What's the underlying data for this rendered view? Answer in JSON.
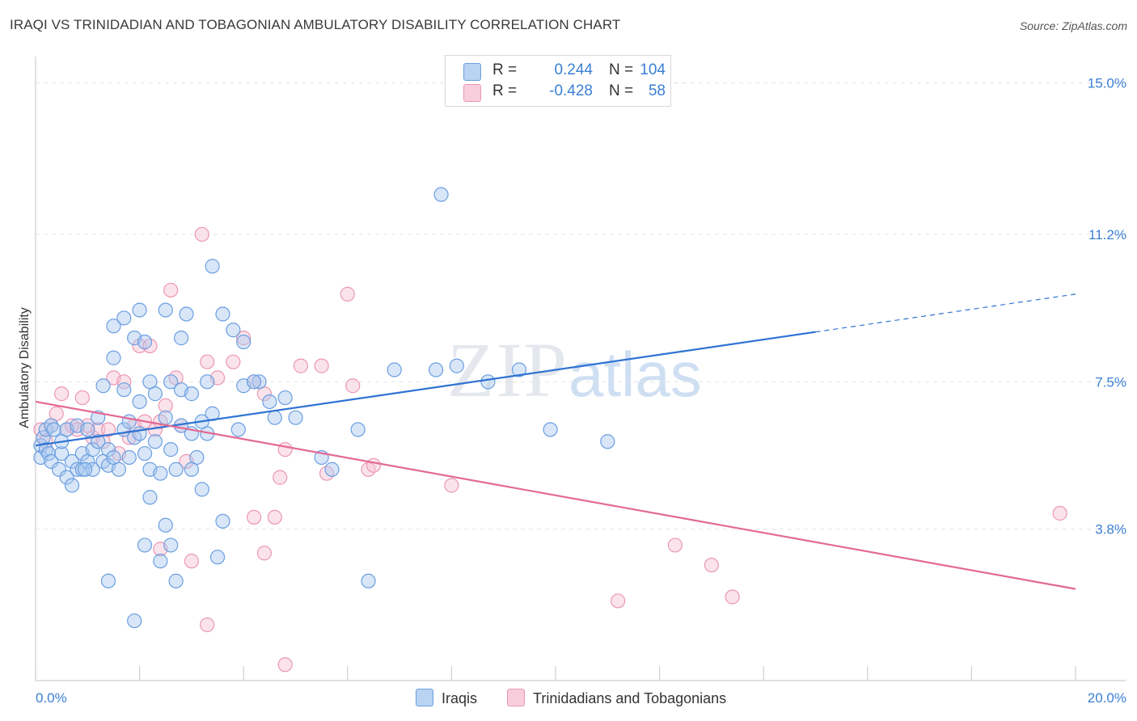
{
  "title": "IRAQI VS TRINIDADIAN AND TOBAGONIAN AMBULATORY DISABILITY CORRELATION CHART",
  "source": "Source: ZipAtlas.com",
  "watermark": {
    "zip": "ZIP",
    "atlas": "atlas"
  },
  "legend": {
    "rows": [
      {
        "r_label": "R =",
        "r_value": "0.244",
        "n_label": "N =",
        "n_value": "104"
      },
      {
        "r_label": "R =",
        "r_value": "-0.428",
        "n_label": "N =",
        "n_value": "58"
      }
    ]
  },
  "bottom_legend": {
    "iraqis": "Iraqis",
    "trinidadians": "Trinidadians and Tobagonians"
  },
  "colors": {
    "iraqis_fill": "#a9c8ef",
    "iraqis_stroke": "#6b9fe0",
    "iraqis_line": "#2f73d3",
    "trin_fill": "#f6c2d3",
    "trin_stroke": "#eb97b3",
    "trin_line": "#e36993",
    "grid": "#e2e2e2",
    "tick_label": "#3a7fd5"
  },
  "chart_data": {
    "type": "scatter",
    "title": "IRAQI VS TRINIDADIAN AND TOBAGONIAN AMBULATORY DISABILITY CORRELATION CHART",
    "xlabel": "",
    "ylabel": "Ambulatory Disability",
    "xlim": [
      0,
      20
    ],
    "ylim": [
      0,
      15.5
    ],
    "x_tick_labels": [
      "0.0%",
      "20.0%"
    ],
    "y_ticks": [
      3.8,
      7.5,
      11.2,
      15.0
    ],
    "y_tick_labels": [
      "3.8%",
      "7.5%",
      "11.2%",
      "15.0%"
    ],
    "grid": "horizontal dashed",
    "series": [
      {
        "name": "Iraqis",
        "R": 0.244,
        "N": 104,
        "trend": {
          "x": [
            0,
            15
          ],
          "y": [
            5.9,
            8.75
          ],
          "dashed_to": [
            20,
            9.7
          ]
        },
        "points": [
          [
            0.1,
            5.9
          ],
          [
            0.1,
            5.6
          ],
          [
            0.15,
            6.1
          ],
          [
            0.2,
            6.3
          ],
          [
            0.2,
            5.8
          ],
          [
            0.25,
            5.7
          ],
          [
            0.3,
            6.4
          ],
          [
            0.3,
            5.5
          ],
          [
            0.35,
            6.3
          ],
          [
            0.45,
            5.3
          ],
          [
            0.5,
            5.7
          ],
          [
            0.5,
            6.0
          ],
          [
            0.6,
            5.1
          ],
          [
            0.6,
            6.3
          ],
          [
            0.7,
            4.9
          ],
          [
            0.7,
            5.5
          ],
          [
            0.8,
            5.3
          ],
          [
            0.8,
            6.4
          ],
          [
            0.9,
            5.3
          ],
          [
            0.9,
            5.7
          ],
          [
            1.0,
            5.5
          ],
          [
            1.0,
            6.3
          ],
          [
            1.1,
            5.3
          ],
          [
            1.1,
            5.8
          ],
          [
            1.2,
            6.6
          ],
          [
            1.2,
            6.0
          ],
          [
            1.3,
            5.5
          ],
          [
            1.4,
            5.4
          ],
          [
            1.4,
            5.8
          ],
          [
            1.5,
            5.6
          ],
          [
            1.6,
            5.3
          ],
          [
            1.7,
            6.3
          ],
          [
            1.8,
            5.6
          ],
          [
            1.8,
            6.5
          ],
          [
            1.9,
            6.1
          ],
          [
            2.0,
            6.2
          ],
          [
            2.1,
            5.7
          ],
          [
            2.2,
            5.3
          ],
          [
            2.3,
            6.0
          ],
          [
            2.4,
            5.2
          ],
          [
            2.5,
            6.6
          ],
          [
            2.6,
            5.8
          ],
          [
            2.7,
            5.3
          ],
          [
            2.8,
            6.4
          ],
          [
            3.0,
            6.2
          ],
          [
            3.1,
            5.6
          ],
          [
            3.2,
            6.5
          ],
          [
            3.3,
            6.2
          ],
          [
            3.4,
            6.7
          ],
          [
            1.3,
            7.4
          ],
          [
            1.5,
            8.1
          ],
          [
            1.7,
            7.3
          ],
          [
            1.9,
            8.6
          ],
          [
            2.0,
            7.0
          ],
          [
            2.2,
            7.5
          ],
          [
            2.3,
            7.2
          ],
          [
            2.6,
            7.5
          ],
          [
            2.8,
            7.3
          ],
          [
            3.0,
            7.2
          ],
          [
            3.3,
            7.5
          ],
          [
            1.5,
            8.9
          ],
          [
            1.7,
            9.1
          ],
          [
            2.0,
            9.3
          ],
          [
            2.1,
            8.5
          ],
          [
            2.5,
            9.3
          ],
          [
            2.8,
            8.6
          ],
          [
            2.9,
            9.2
          ],
          [
            3.4,
            10.4
          ],
          [
            3.6,
            9.2
          ],
          [
            3.8,
            8.8
          ],
          [
            4.0,
            8.5
          ],
          [
            4.0,
            7.4
          ],
          [
            4.3,
            7.5
          ],
          [
            4.5,
            7.0
          ],
          [
            4.6,
            6.6
          ],
          [
            4.8,
            7.1
          ],
          [
            5.0,
            6.6
          ],
          [
            3.9,
            6.3
          ],
          [
            4.2,
            7.5
          ],
          [
            5.5,
            5.6
          ],
          [
            5.7,
            5.3
          ],
          [
            6.2,
            6.3
          ],
          [
            6.9,
            7.8
          ],
          [
            7.7,
            7.8
          ],
          [
            8.1,
            7.9
          ],
          [
            8.7,
            7.5
          ],
          [
            9.3,
            7.8
          ],
          [
            9.9,
            6.3
          ],
          [
            11.0,
            6.0
          ],
          [
            7.8,
            12.2
          ],
          [
            2.1,
            3.4
          ],
          [
            2.4,
            3.0
          ],
          [
            2.5,
            3.9
          ],
          [
            2.6,
            3.4
          ],
          [
            2.7,
            2.5
          ],
          [
            3.2,
            4.8
          ],
          [
            3.5,
            3.1
          ],
          [
            3.6,
            4.0
          ],
          [
            1.4,
            2.5
          ],
          [
            1.9,
            1.5
          ],
          [
            6.4,
            2.5
          ],
          [
            0.95,
            5.3
          ],
          [
            2.2,
            4.6
          ],
          [
            3.0,
            5.3
          ]
        ]
      },
      {
        "name": "Trinidadians and Tobagonians",
        "R": -0.428,
        "N": 58,
        "trend": {
          "x": [
            0,
            20
          ],
          "y": [
            7.0,
            2.3
          ]
        },
        "points": [
          [
            0.1,
            6.3
          ],
          [
            0.2,
            6.0
          ],
          [
            0.3,
            6.4
          ],
          [
            0.4,
            6.7
          ],
          [
            0.5,
            7.2
          ],
          [
            0.6,
            6.3
          ],
          [
            0.7,
            6.4
          ],
          [
            0.8,
            6.3
          ],
          [
            0.9,
            7.1
          ],
          [
            1.0,
            6.4
          ],
          [
            1.1,
            6.1
          ],
          [
            1.2,
            6.3
          ],
          [
            1.3,
            6.0
          ],
          [
            1.4,
            6.3
          ],
          [
            1.5,
            7.6
          ],
          [
            1.6,
            5.7
          ],
          [
            1.7,
            7.5
          ],
          [
            1.8,
            6.1
          ],
          [
            1.9,
            6.4
          ],
          [
            2.0,
            8.4
          ],
          [
            2.1,
            6.5
          ],
          [
            2.2,
            8.4
          ],
          [
            2.3,
            6.3
          ],
          [
            2.4,
            6.5
          ],
          [
            2.5,
            6.9
          ],
          [
            2.6,
            9.8
          ],
          [
            2.7,
            7.6
          ],
          [
            2.8,
            6.4
          ],
          [
            2.9,
            5.5
          ],
          [
            3.2,
            11.2
          ],
          [
            3.3,
            8.0
          ],
          [
            3.5,
            7.6
          ],
          [
            3.8,
            8.0
          ],
          [
            4.0,
            8.6
          ],
          [
            4.2,
            7.5
          ],
          [
            4.4,
            7.2
          ],
          [
            4.7,
            5.1
          ],
          [
            4.8,
            5.8
          ],
          [
            5.1,
            7.9
          ],
          [
            5.5,
            7.9
          ],
          [
            5.6,
            5.2
          ],
          [
            6.0,
            9.7
          ],
          [
            6.1,
            7.4
          ],
          [
            6.4,
            5.3
          ],
          [
            6.5,
            5.4
          ],
          [
            8.0,
            4.9
          ],
          [
            3.0,
            3.0
          ],
          [
            3.3,
            1.4
          ],
          [
            4.2,
            4.1
          ],
          [
            4.4,
            3.2
          ],
          [
            4.6,
            4.1
          ],
          [
            4.8,
            0.4
          ],
          [
            11.2,
            2.0
          ],
          [
            12.3,
            3.4
          ],
          [
            13.0,
            2.9
          ],
          [
            13.4,
            2.1
          ],
          [
            19.7,
            4.2
          ],
          [
            2.4,
            3.3
          ]
        ]
      }
    ]
  }
}
